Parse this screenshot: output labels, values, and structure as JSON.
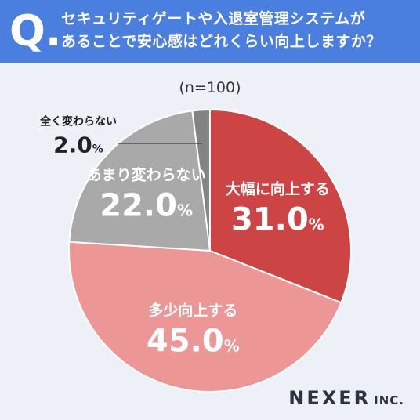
{
  "header": {
    "q_mark": "Q.",
    "question_line1": "セキュリティゲートや入退室管理システムが",
    "question_line2": "あることで安心感はどれくらい向上しますか？"
  },
  "sample_size": "(n=100)",
  "logo": {
    "name": "NEXER",
    "suffix": "INC."
  },
  "colors": {
    "header_bg": "#4a7fe0",
    "background": "#edf1f7"
  },
  "chart_data": {
    "type": "pie",
    "start_angle": "12 o'clock",
    "direction": "clockwise",
    "unit": "%",
    "slices": [
      {
        "label": "大幅に向上する",
        "value": 31.0,
        "value_text": "31.0",
        "color": "#cc4444"
      },
      {
        "label": "多少向上する",
        "value": 45.0,
        "value_text": "45.0",
        "color": "#ec9696"
      },
      {
        "label": "あまり変わらない",
        "value": 22.0,
        "value_text": "22.0",
        "color": "#a9a9a9"
      },
      {
        "label": "全く変わらない",
        "value": 2.0,
        "value_text": "2.0",
        "color": "#838383"
      }
    ]
  }
}
